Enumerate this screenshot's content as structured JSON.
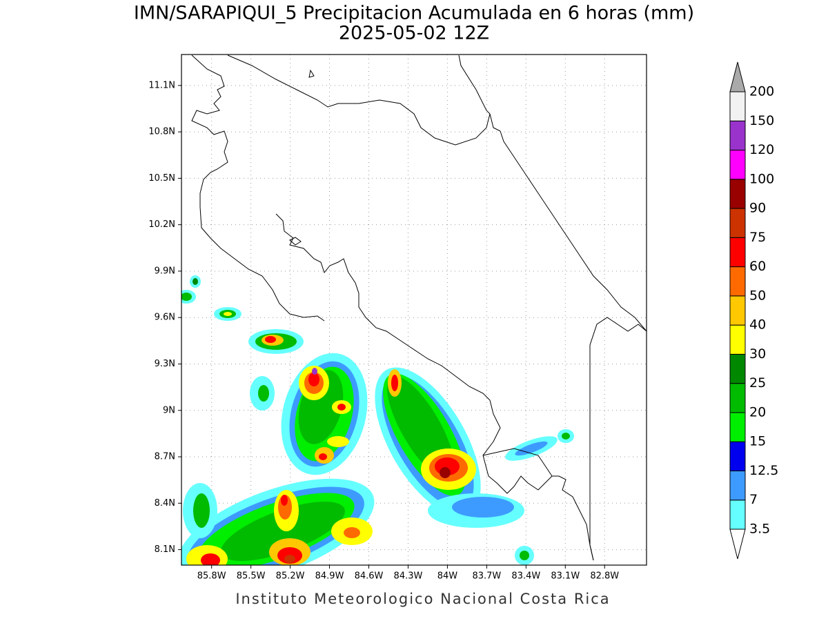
{
  "map": {
    "title": "IMN/SARAPIQUI_5 Precipitacion Acumulada en 6 horas (mm)",
    "subtitle": "2025-05-02 12Z",
    "footer": "Instituto Meteorologico Nacional Costa Rica",
    "lonlim": [
      -86.03,
      -82.48
    ],
    "latlim": [
      8.0,
      11.3
    ],
    "lon_ticks": [
      {
        "value": -85.8,
        "label": "85.8W"
      },
      {
        "value": -85.5,
        "label": "85.5W"
      },
      {
        "value": -85.2,
        "label": "85.2W"
      },
      {
        "value": -84.9,
        "label": "84.9W"
      },
      {
        "value": -84.6,
        "label": "84.6W"
      },
      {
        "value": -84.3,
        "label": "84.3W"
      },
      {
        "value": -84.0,
        "label": "84W"
      },
      {
        "value": -83.7,
        "label": "83.7W"
      },
      {
        "value": -83.4,
        "label": "83.4W"
      },
      {
        "value": -83.1,
        "label": "83.1W"
      },
      {
        "value": -82.8,
        "label": "82.8W"
      }
    ],
    "lat_ticks": [
      {
        "value": 11.1,
        "label": "11.1N"
      },
      {
        "value": 10.8,
        "label": "10.8N"
      },
      {
        "value": 10.5,
        "label": "10.5N"
      },
      {
        "value": 10.2,
        "label": "10.2N"
      },
      {
        "value": 9.9,
        "label": "9.9N"
      },
      {
        "value": 9.6,
        "label": "9.6N"
      },
      {
        "value": 9.3,
        "label": "9.3N"
      },
      {
        "value": 9.0,
        "label": "9N"
      },
      {
        "value": 8.7,
        "label": "8.7N"
      },
      {
        "value": 8.4,
        "label": "8.4N"
      },
      {
        "value": 8.1,
        "label": "8.1N"
      }
    ],
    "grid": true,
    "colorbar": {
      "levels": [
        3.5,
        7,
        12.5,
        15,
        20,
        25,
        30,
        40,
        50,
        60,
        75,
        90,
        100,
        120,
        150,
        200
      ],
      "colors": [
        "#66ffff",
        "#3d9bff",
        "#0000ee",
        "#00ee00",
        "#00bb00",
        "#008800",
        "#ffff00",
        "#ffc800",
        "#ff6a00",
        "#ff0000",
        "#cc3300",
        "#990000",
        "#ff00ff",
        "#9933cc",
        "#f2f2f2"
      ],
      "under_color": "#ffffff",
      "over_color": "#aaaaaa"
    }
  }
}
